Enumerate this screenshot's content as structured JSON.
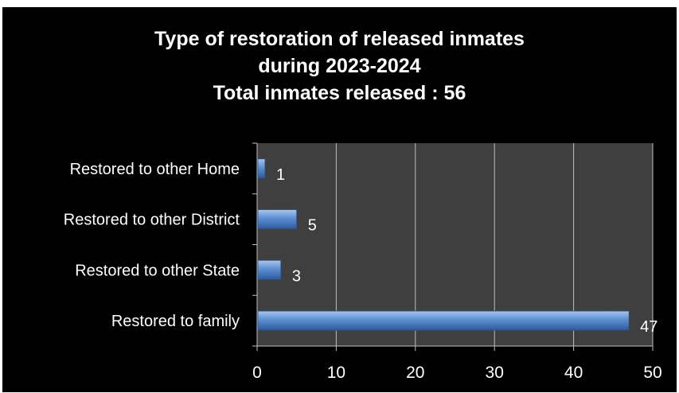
{
  "chart_data": {
    "type": "bar",
    "orientation": "horizontal",
    "title": "Type of restoration of released inmates during 2023-2024 Total inmates released : 56",
    "title_lines": [
      "Type of restoration of released inmates",
      "during 2023-2024",
      "Total inmates released : 56"
    ],
    "categories": [
      "Restored to other Home",
      "Restored to other District",
      "Restored to other State",
      "Restored to family"
    ],
    "values": [
      1,
      5,
      3,
      47
    ],
    "xlim": [
      0,
      50
    ],
    "xticks": [
      0,
      10,
      20,
      30,
      40,
      50
    ],
    "xlabel": "",
    "ylabel": "",
    "grid": "vertical",
    "data_labels": true,
    "colors": {
      "background": "#000000",
      "plot_area": "#3f3f3f",
      "bar": "#4f81bd",
      "grid": "#bfbfbf",
      "text": "#ffffff"
    }
  }
}
